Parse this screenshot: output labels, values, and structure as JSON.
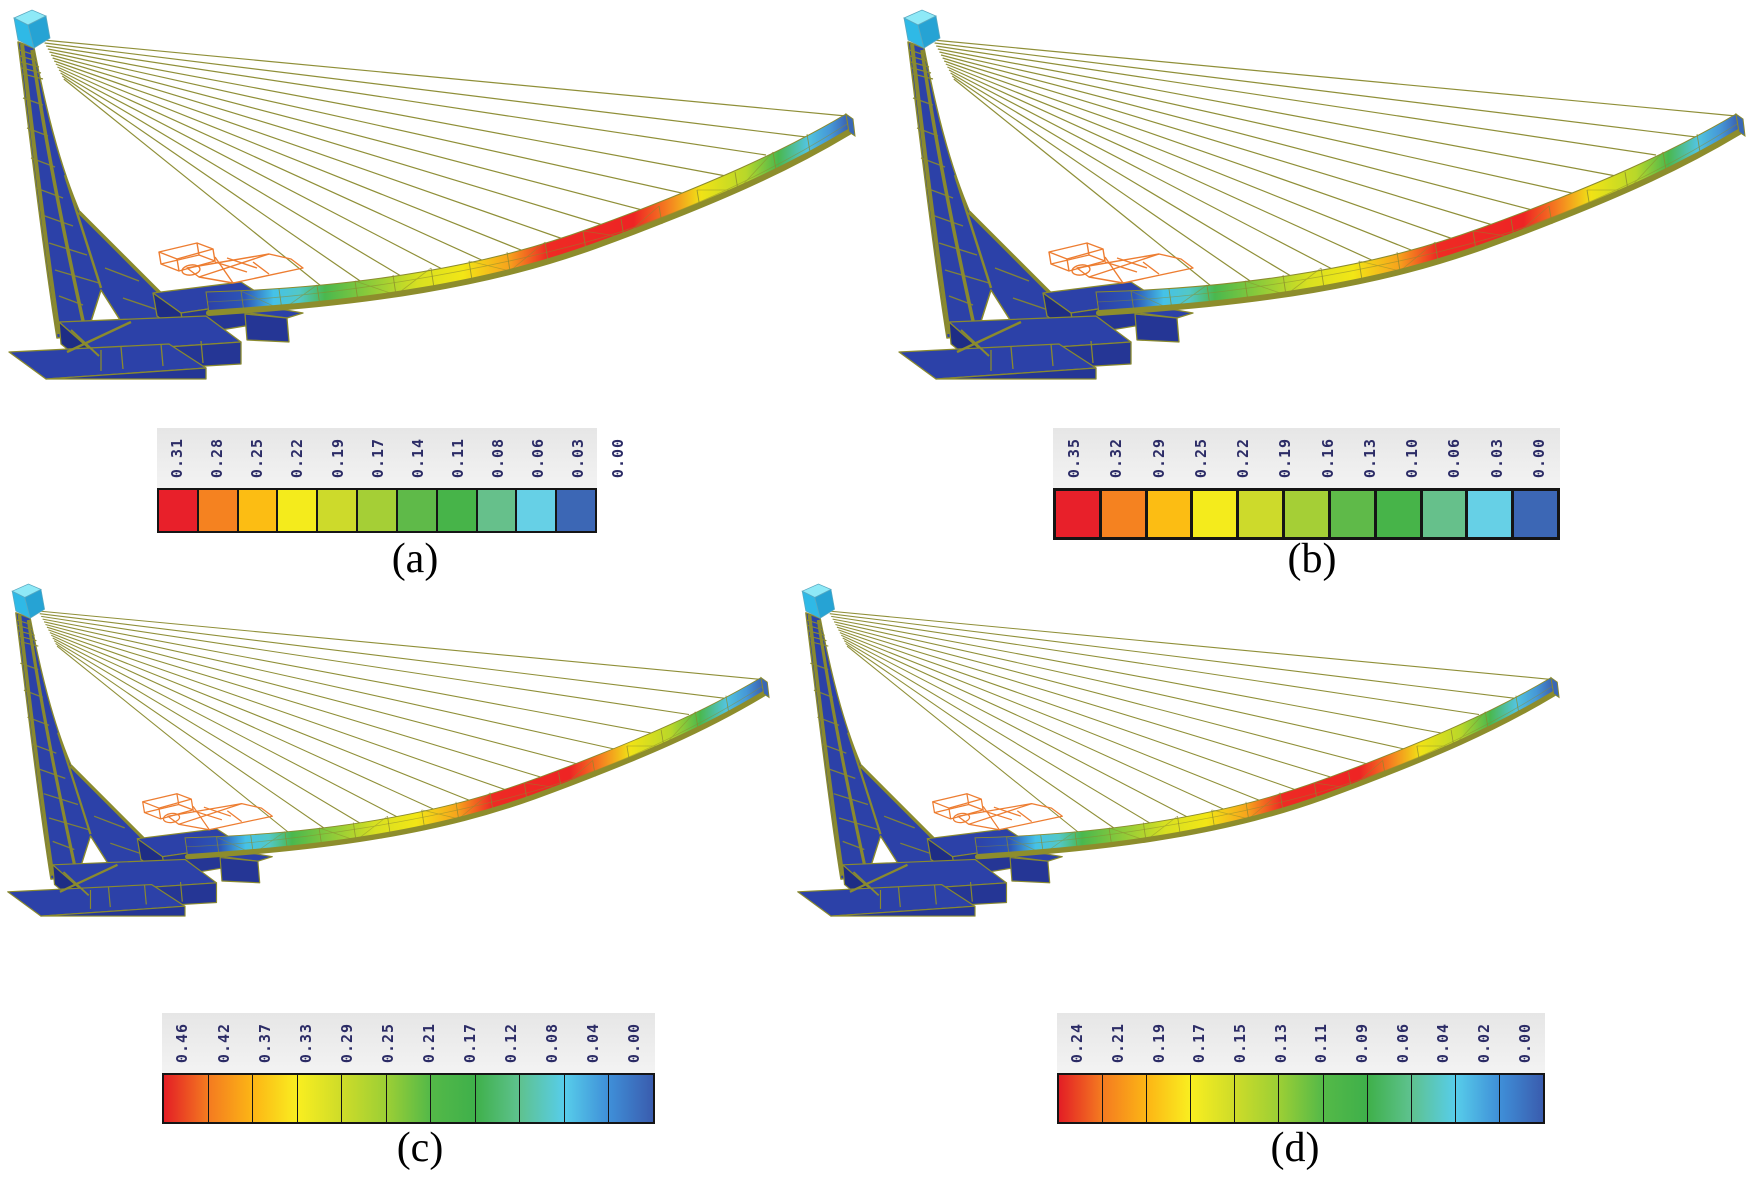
{
  "figure": {
    "description": "Finite-element contour results of a cable-stayed bridge model, four load cases",
    "background": "#ffffff"
  },
  "panels": [
    {
      "id": "a",
      "caption": "(a)",
      "colorbar": {
        "style": "flat",
        "labels": [
          "0.31",
          "0.28",
          "0.25",
          "0.22",
          "0.19",
          "0.17",
          "0.14",
          "0.11",
          "0.08",
          "0.06",
          "0.03",
          "0.00"
        ],
        "cell_colors": [
          "#e8202a",
          "#f58220",
          "#fcbd13",
          "#f4eb1c",
          "#cdda2b",
          "#a5cf36",
          "#5fba49",
          "#47b449",
          "#66c08b",
          "#66d0e6",
          "#3c67b5"
        ]
      }
    },
    {
      "id": "b",
      "caption": "(b)",
      "colorbar": {
        "style": "flat",
        "labels": [
          "0.35",
          "0.32",
          "0.29",
          "0.25",
          "0.22",
          "0.19",
          "0.16",
          "0.13",
          "0.10",
          "0.06",
          "0.03",
          "0.00"
        ],
        "cell_colors": [
          "#e8202a",
          "#f58220",
          "#fcbd13",
          "#f4eb1c",
          "#cdda2b",
          "#a5cf36",
          "#5fba49",
          "#47b449",
          "#66c08b",
          "#66d0e6",
          "#3c67b5"
        ]
      }
    },
    {
      "id": "c",
      "caption": "(c)",
      "colorbar": {
        "style": "gradient",
        "labels": [
          "0.46",
          "0.42",
          "0.37",
          "0.33",
          "0.29",
          "0.25",
          "0.21",
          "0.17",
          "0.12",
          "0.08",
          "0.04",
          "0.00"
        ],
        "stop_colors": [
          "#e31e25",
          "#f47b20",
          "#fcb515",
          "#f9ee20",
          "#cedc29",
          "#9ccf35",
          "#54b948",
          "#3fb04a",
          "#5ec28f",
          "#57cdea",
          "#3f8fd8",
          "#3a5cae"
        ]
      }
    },
    {
      "id": "d",
      "caption": "(d)",
      "colorbar": {
        "style": "gradient",
        "labels": [
          "0.24",
          "0.21",
          "0.19",
          "0.17",
          "0.15",
          "0.13",
          "0.11",
          "0.09",
          "0.06",
          "0.04",
          "0.02",
          "0.00"
        ],
        "stop_colors": [
          "#e31e25",
          "#f47b20",
          "#fcb515",
          "#f9ee20",
          "#cedc29",
          "#9ccf35",
          "#54b948",
          "#3fb04a",
          "#5ec28f",
          "#57cdea",
          "#3f8fd8",
          "#3a5cae"
        ]
      }
    }
  ],
  "model": {
    "structure_color": "#2c41a8",
    "structure_front_color": "#253695",
    "structure_side_color": "#1e2d85",
    "edge_color": "#8a8a2e",
    "cable_color": "#8a8a2e",
    "tower_cap_front": "#2fb9e6",
    "tower_cap_top": "#8ee9f7",
    "tower_cap_side": "#26a3d4",
    "deck_end_color": "#3a68b6",
    "vehicle_wireframe_color": "#ed7d31",
    "deck_gradient": [
      {
        "o": 0.0,
        "c": "#2c41a8"
      },
      {
        "o": 0.06,
        "c": "#2c55b8"
      },
      {
        "o": 0.105,
        "c": "#45c2e8"
      },
      {
        "o": 0.145,
        "c": "#52c8c8"
      },
      {
        "o": 0.185,
        "c": "#4ab84e"
      },
      {
        "o": 0.27,
        "c": "#9ccf35"
      },
      {
        "o": 0.33,
        "c": "#d8e021"
      },
      {
        "o": 0.4,
        "c": "#f2e616"
      },
      {
        "o": 0.47,
        "c": "#f7a41c"
      },
      {
        "o": 0.53,
        "c": "#ee2a24"
      },
      {
        "o": 0.665,
        "c": "#ee2424"
      },
      {
        "o": 0.72,
        "c": "#f58220"
      },
      {
        "o": 0.77,
        "c": "#f0e316"
      },
      {
        "o": 0.84,
        "c": "#b8d72a"
      },
      {
        "o": 0.89,
        "c": "#4ab84e"
      },
      {
        "o": 0.935,
        "c": "#52c4de"
      },
      {
        "o": 0.97,
        "c": "#4598d8"
      },
      {
        "o": 1.0,
        "c": "#3a5fb0"
      }
    ]
  }
}
